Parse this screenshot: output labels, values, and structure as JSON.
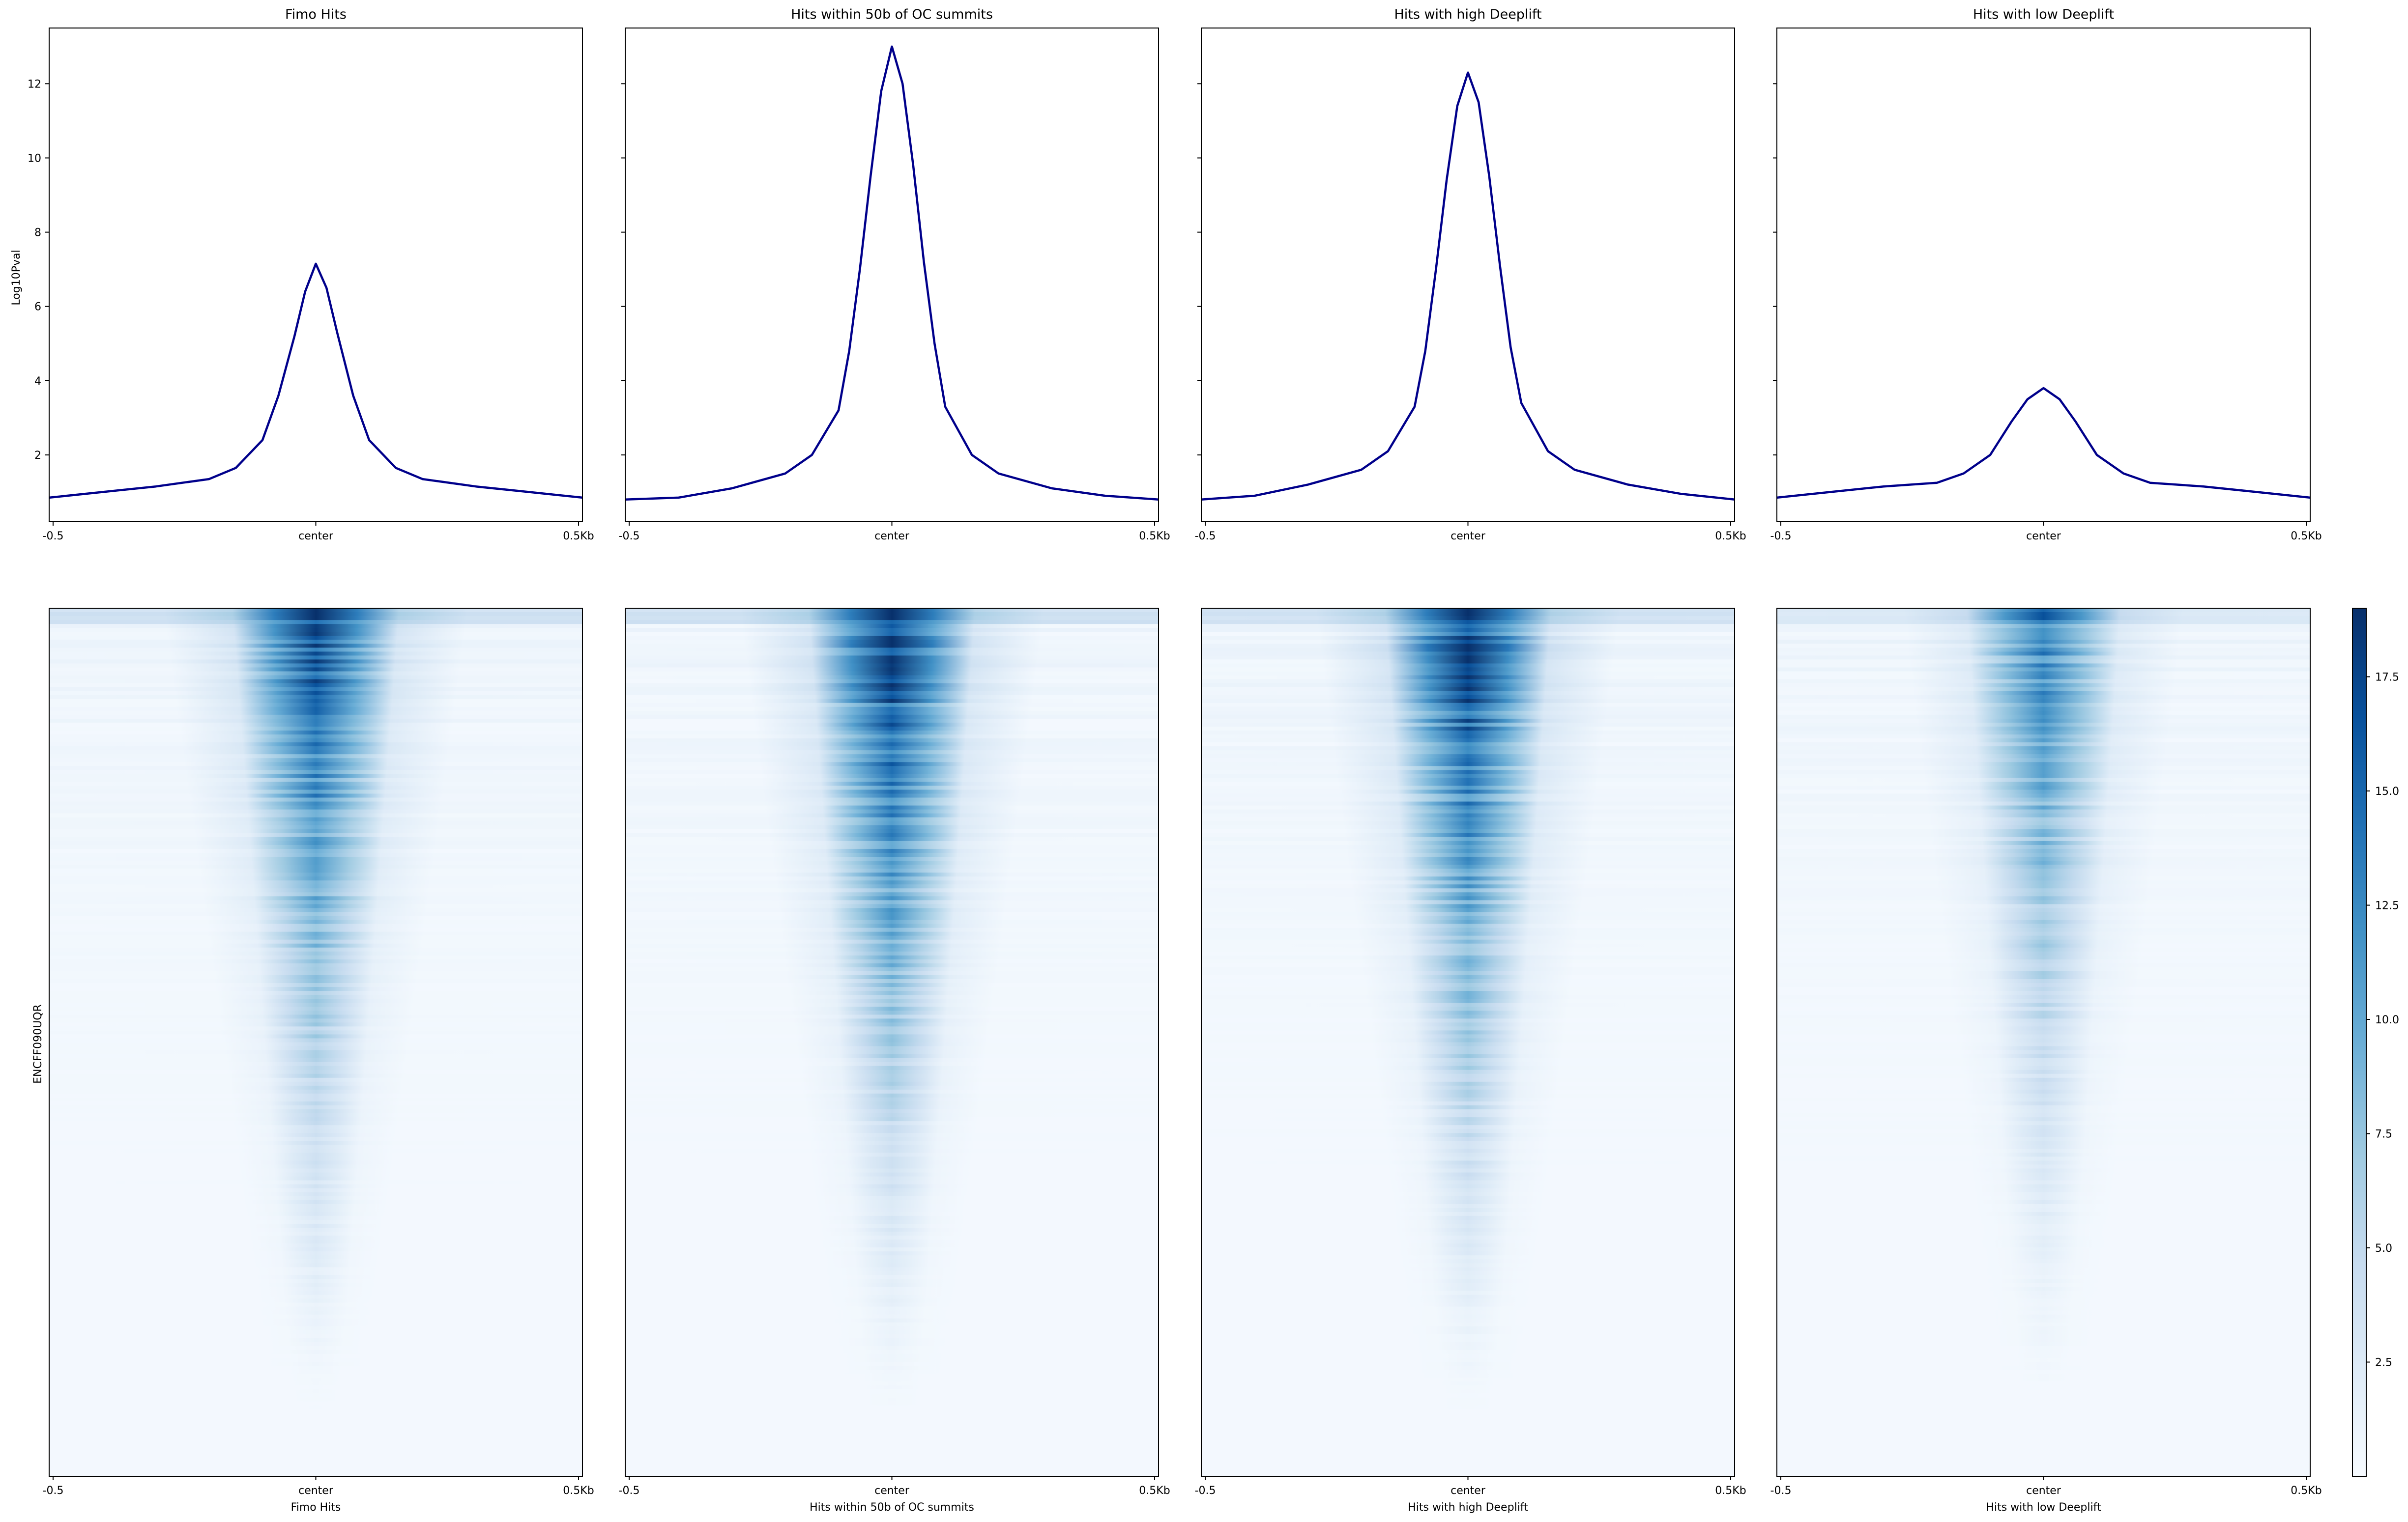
{
  "figure": {
    "profile_ylabel": "Log10Pval",
    "heatmap_ylabel": "ENCFF090UQR"
  },
  "chart_data": [
    {
      "type": "line",
      "title": "Fimo Hits",
      "xlabel": "",
      "ylabel": "Log10Pval",
      "xticks": [
        "-0.5",
        "center",
        "0.5Kb"
      ],
      "xlim": [
        -0.5,
        0.5
      ],
      "ylim": [
        0.2,
        13.5
      ],
      "yticks": [
        2,
        4,
        6,
        8,
        10,
        12
      ],
      "line_color": "#00008b",
      "series": [
        {
          "x": [
            -0.5,
            -0.4,
            -0.3,
            -0.2,
            -0.15,
            -0.1,
            -0.07,
            -0.04,
            -0.02,
            0,
            0.02,
            0.04,
            0.07,
            0.1,
            0.15,
            0.2,
            0.3,
            0.4,
            0.5
          ],
          "y": [
            0.85,
            1.0,
            1.15,
            1.35,
            1.65,
            2.4,
            3.6,
            5.2,
            6.4,
            7.15,
            6.5,
            5.3,
            3.6,
            2.4,
            1.65,
            1.35,
            1.15,
            1.0,
            0.85
          ]
        }
      ]
    },
    {
      "type": "line",
      "title": "Hits within 50b of OC summits",
      "xlabel": "",
      "ylabel": "",
      "xticks": [
        "-0.5",
        "center",
        "0.5Kb"
      ],
      "xlim": [
        -0.5,
        0.5
      ],
      "ylim": [
        0.2,
        13.5
      ],
      "yticks": [
        2,
        4,
        6,
        8,
        10,
        12
      ],
      "line_color": "#00008b",
      "series": [
        {
          "x": [
            -0.5,
            -0.4,
            -0.3,
            -0.2,
            -0.15,
            -0.1,
            -0.08,
            -0.06,
            -0.04,
            -0.02,
            0,
            0.02,
            0.04,
            0.06,
            0.08,
            0.1,
            0.15,
            0.2,
            0.3,
            0.4,
            0.5
          ],
          "y": [
            0.8,
            0.85,
            1.1,
            1.5,
            2.0,
            3.2,
            4.8,
            7.0,
            9.5,
            11.8,
            13.0,
            12.0,
            9.8,
            7.2,
            5.0,
            3.3,
            2.0,
            1.5,
            1.1,
            0.9,
            0.8
          ]
        }
      ]
    },
    {
      "type": "line",
      "title": "Hits with high Deeplift",
      "xlabel": "",
      "ylabel": "",
      "xticks": [
        "-0.5",
        "center",
        "0.5Kb"
      ],
      "xlim": [
        -0.5,
        0.5
      ],
      "ylim": [
        0.2,
        13.5
      ],
      "yticks": [
        2,
        4,
        6,
        8,
        10,
        12
      ],
      "line_color": "#00008b",
      "series": [
        {
          "x": [
            -0.5,
            -0.4,
            -0.3,
            -0.2,
            -0.15,
            -0.1,
            -0.08,
            -0.06,
            -0.04,
            -0.02,
            0,
            0.02,
            0.04,
            0.06,
            0.08,
            0.1,
            0.15,
            0.2,
            0.3,
            0.4,
            0.5
          ],
          "y": [
            0.8,
            0.9,
            1.2,
            1.6,
            2.1,
            3.3,
            4.8,
            7.0,
            9.4,
            11.4,
            12.3,
            11.5,
            9.5,
            7.1,
            4.9,
            3.4,
            2.1,
            1.6,
            1.2,
            0.95,
            0.8
          ]
        }
      ]
    },
    {
      "type": "line",
      "title": "Hits with low Deeplift",
      "xlabel": "",
      "ylabel": "",
      "xticks": [
        "-0.5",
        "center",
        "0.5Kb"
      ],
      "xlim": [
        -0.5,
        0.5
      ],
      "ylim": [
        0.2,
        13.5
      ],
      "yticks": [
        2,
        4,
        6,
        8,
        10,
        12
      ],
      "line_color": "#00008b",
      "series": [
        {
          "x": [
            -0.5,
            -0.4,
            -0.3,
            -0.2,
            -0.15,
            -0.1,
            -0.06,
            -0.03,
            0,
            0.03,
            0.06,
            0.1,
            0.15,
            0.2,
            0.3,
            0.4,
            0.5
          ],
          "y": [
            0.85,
            1.0,
            1.15,
            1.25,
            1.5,
            2.0,
            2.9,
            3.5,
            3.8,
            3.5,
            2.9,
            2.0,
            1.5,
            1.25,
            1.15,
            1.0,
            0.85
          ]
        }
      ]
    },
    {
      "type": "heatmap",
      "title": "",
      "xlabel": "Fimo Hits",
      "ylabel": "ENCFF090UQR",
      "xticks": [
        "-0.5",
        "center",
        "0.5Kb"
      ],
      "intensity": 0.92,
      "width_rows_top": 0.13,
      "width_rows_bottom": 0.03
    },
    {
      "type": "heatmap",
      "title": "",
      "xlabel": "Hits within 50b of OC summits",
      "ylabel": "",
      "xticks": [
        "-0.5",
        "center",
        "0.5Kb"
      ],
      "intensity": 1.0,
      "width_rows_top": 0.13,
      "width_rows_bottom": 0.035
    },
    {
      "type": "heatmap",
      "title": "",
      "xlabel": "Hits with high Deeplift",
      "ylabel": "",
      "xticks": [
        "-0.5",
        "center",
        "0.5Kb"
      ],
      "intensity": 1.0,
      "width_rows_top": 0.13,
      "width_rows_bottom": 0.035
    },
    {
      "type": "heatmap",
      "title": "",
      "xlabel": "Hits with low Deeplift",
      "ylabel": "",
      "xticks": [
        "-0.5",
        "center",
        "0.5Kb"
      ],
      "intensity": 0.7,
      "width_rows_top": 0.12,
      "width_rows_bottom": 0.03
    }
  ],
  "colorbar": {
    "colormap": "Blues",
    "vmin": 0,
    "vmax": 19,
    "ticks": [
      2.5,
      5.0,
      7.5,
      10.0,
      12.5,
      15.0,
      17.5
    ],
    "tick_labels": [
      "2.5",
      "5.0",
      "7.5",
      "10.0",
      "12.5",
      "15.0",
      "17.5"
    ]
  }
}
